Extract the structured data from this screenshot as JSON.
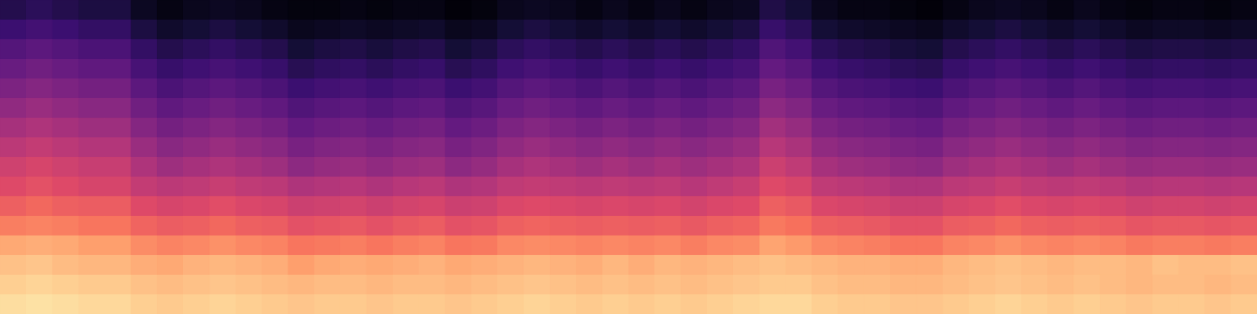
{
  "chart_data": {
    "type": "heatmap",
    "tick_labels": false,
    "grid": false,
    "color_range": [
      0,
      100
    ],
    "cells": [
      [
        93,
        94,
        93,
        92,
        92,
        90,
        89,
        90,
        91,
        90,
        89,
        88,
        89,
        89,
        88,
        89,
        89,
        88,
        89,
        90,
        91,
        90,
        89,
        90,
        89,
        90,
        89,
        90,
        91,
        92,
        92,
        90,
        89,
        89,
        88,
        88,
        89,
        90,
        91,
        90,
        89,
        90,
        89,
        88,
        89,
        89,
        88,
        89
      ],
      [
        90,
        91,
        90,
        89,
        89,
        87,
        86,
        87,
        88,
        87,
        86,
        85,
        86,
        86,
        85,
        86,
        86,
        85,
        86,
        87,
        88,
        87,
        86,
        87,
        86,
        87,
        86,
        87,
        88,
        89,
        89,
        87,
        86,
        86,
        85,
        85,
        86,
        87,
        88,
        87,
        86,
        87,
        86,
        85,
        86,
        86,
        85,
        86
      ],
      [
        87,
        88,
        86,
        85,
        85,
        83,
        82,
        84,
        85,
        84,
        83,
        80,
        82,
        83,
        82,
        83,
        84,
        82,
        83,
        84,
        85,
        84,
        83,
        85,
        83,
        85,
        84,
        85,
        86,
        87,
        86,
        85,
        84,
        84,
        83,
        83,
        85,
        86,
        87,
        86,
        85,
        86,
        86,
        85,
        87,
        86,
        86,
        87
      ],
      [
        82,
        83,
        82,
        80,
        80,
        76,
        74,
        75,
        77,
        75,
        74,
        71,
        72,
        73,
        71,
        73,
        74,
        71,
        72,
        75,
        76,
        75,
        74,
        75,
        74,
        75,
        73,
        75,
        76,
        81,
        79,
        75,
        74,
        73,
        71,
        71,
        74,
        75,
        77,
        75,
        74,
        75,
        74,
        72,
        73,
        73,
        72,
        73
      ],
      [
        73,
        74,
        73,
        71,
        71,
        67,
        65,
        66,
        68,
        66,
        65,
        62,
        63,
        64,
        62,
        64,
        65,
        62,
        63,
        66,
        67,
        66,
        65,
        66,
        65,
        66,
        64,
        66,
        67,
        72,
        70,
        66,
        65,
        64,
        62,
        62,
        65,
        66,
        68,
        66,
        65,
        66,
        65,
        63,
        64,
        64,
        63,
        64
      ],
      [
        66,
        68,
        66,
        65,
        65,
        60,
        58,
        59,
        61,
        59,
        58,
        55,
        56,
        57,
        55,
        57,
        58,
        55,
        56,
        59,
        60,
        59,
        58,
        59,
        58,
        59,
        57,
        59,
        60,
        66,
        64,
        59,
        58,
        57,
        55,
        55,
        58,
        59,
        61,
        59,
        58,
        59,
        58,
        56,
        57,
        57,
        56,
        57
      ],
      [
        60,
        62,
        60,
        58,
        58,
        53,
        51,
        52,
        54,
        52,
        51,
        48,
        49,
        50,
        48,
        50,
        51,
        48,
        49,
        52,
        53,
        52,
        51,
        52,
        51,
        52,
        50,
        52,
        54,
        60,
        58,
        52,
        51,
        50,
        48,
        48,
        51,
        52,
        54,
        52,
        51,
        52,
        51,
        49,
        50,
        50,
        49,
        50
      ],
      [
        56,
        58,
        56,
        54,
        54,
        48,
        44,
        46,
        48,
        46,
        44,
        40,
        42,
        43,
        41,
        43,
        44,
        40,
        42,
        46,
        48,
        46,
        44,
        46,
        44,
        46,
        44,
        46,
        48,
        55,
        52,
        46,
        44,
        43,
        41,
        40,
        44,
        46,
        48,
        46,
        44,
        46,
        44,
        42,
        43,
        43,
        42,
        43
      ],
      [
        51,
        53,
        51,
        49,
        49,
        43,
        39,
        41,
        43,
        41,
        39,
        35,
        37,
        38,
        36,
        38,
        39,
        35,
        37,
        41,
        43,
        41,
        39,
        41,
        39,
        41,
        39,
        41,
        43,
        50,
        47,
        41,
        39,
        38,
        36,
        35,
        39,
        41,
        43,
        41,
        39,
        41,
        39,
        37,
        38,
        38,
        37,
        38
      ],
      [
        46,
        48,
        46,
        44,
        44,
        38,
        34,
        36,
        38,
        36,
        34,
        30,
        32,
        33,
        31,
        33,
        34,
        30,
        32,
        36,
        38,
        36,
        34,
        36,
        34,
        36,
        34,
        36,
        38,
        45,
        42,
        36,
        34,
        33,
        31,
        30,
        34,
        36,
        38,
        36,
        34,
        36,
        34,
        32,
        33,
        33,
        32,
        33
      ],
      [
        41,
        43,
        41,
        39,
        39,
        33,
        29,
        31,
        33,
        31,
        29,
        25,
        27,
        28,
        26,
        28,
        29,
        25,
        27,
        31,
        33,
        31,
        29,
        31,
        29,
        31,
        29,
        31,
        33,
        40,
        37,
        31,
        29,
        28,
        26,
        25,
        29,
        31,
        33,
        31,
        29,
        31,
        29,
        27,
        28,
        28,
        27,
        28
      ],
      [
        36,
        38,
        36,
        34,
        34,
        28,
        24,
        26,
        28,
        26,
        24,
        20,
        22,
        23,
        21,
        23,
        24,
        20,
        22,
        26,
        28,
        26,
        24,
        26,
        24,
        26,
        24,
        26,
        28,
        35,
        32,
        26,
        24,
        23,
        21,
        20,
        24,
        26,
        28,
        26,
        24,
        26,
        24,
        22,
        23,
        23,
        22,
        23
      ],
      [
        31,
        33,
        31,
        29,
        29,
        23,
        19,
        21,
        23,
        21,
        19,
        15,
        17,
        18,
        16,
        18,
        19,
        15,
        17,
        21,
        23,
        21,
        19,
        21,
        19,
        21,
        19,
        21,
        23,
        30,
        27,
        21,
        19,
        18,
        16,
        15,
        19,
        21,
        23,
        21,
        19,
        21,
        19,
        17,
        18,
        18,
        17,
        18
      ],
      [
        26,
        28,
        26,
        24,
        24,
        18,
        14,
        16,
        18,
        16,
        14,
        10,
        12,
        13,
        11,
        13,
        14,
        10,
        12,
        16,
        18,
        16,
        14,
        16,
        14,
        16,
        14,
        16,
        18,
        25,
        22,
        16,
        14,
        13,
        11,
        10,
        14,
        16,
        18,
        16,
        14,
        16,
        14,
        12,
        13,
        13,
        12,
        13
      ],
      [
        20,
        22,
        20,
        18,
        18,
        12,
        8,
        10,
        12,
        10,
        8,
        5,
        6,
        7,
        6,
        7,
        8,
        5,
        6,
        10,
        12,
        10,
        8,
        10,
        8,
        10,
        8,
        10,
        12,
        19,
        16,
        10,
        8,
        7,
        6,
        5,
        8,
        10,
        12,
        10,
        8,
        10,
        8,
        6,
        7,
        7,
        6,
        7
      ],
      [
        14,
        16,
        14,
        12,
        12,
        6,
        3,
        5,
        6,
        5,
        3,
        2,
        2,
        3,
        2,
        3,
        3,
        1,
        2,
        5,
        6,
        5,
        3,
        5,
        3,
        5,
        3,
        5,
        6,
        13,
        10,
        5,
        3,
        3,
        2,
        1,
        3,
        5,
        6,
        5,
        3,
        5,
        3,
        2,
        3,
        3,
        2,
        3
      ]
    ]
  }
}
